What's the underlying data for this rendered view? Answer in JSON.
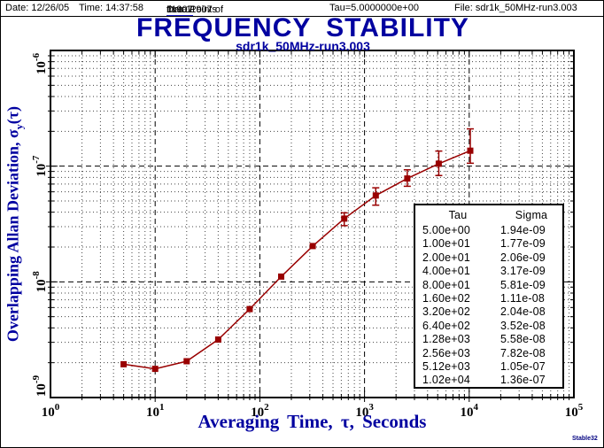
{
  "header": {
    "date_label": "Date: 12/26/05",
    "time_label": "Time: 14:37:58",
    "datapoints_prefix": "Data Points ",
    "datapoints_start": "1",
    "datapoints_mid": " thru 11907 of ",
    "datapoints_end": "11907",
    "tau_label": "Tau=5.0000000e+00",
    "file_label": "File: sdr1k_50MHz-run3.003"
  },
  "title": "FREQUENCY STABILITY",
  "subtitle": "sdr1k_50MHz-run3.003",
  "axes": {
    "x_title": "Averaging Time, τ, Seconds",
    "y_title_prefix": "Overlapping Allan Deviation, σ",
    "y_title_sub": "y",
    "y_title_suffix": "(τ)"
  },
  "watermark": "Stable32",
  "colors": {
    "accent_blue": "#0000A0",
    "header_blue": "#000080",
    "data_red": "#990000",
    "grid_major": "#000000",
    "grid_minor": "#444444"
  },
  "table": {
    "headers": [
      "Tau",
      "Sigma"
    ],
    "rows": [
      [
        "5.00e+00",
        "1.94e-09"
      ],
      [
        "1.00e+01",
        "1.77e-09"
      ],
      [
        "2.00e+01",
        "2.06e-09"
      ],
      [
        "4.00e+01",
        "3.17e-09"
      ],
      [
        "8.00e+01",
        "5.81e-09"
      ],
      [
        "1.60e+02",
        "1.11e-08"
      ],
      [
        "3.20e+02",
        "2.04e-08"
      ],
      [
        "6.40e+02",
        "3.52e-08"
      ],
      [
        "1.28e+03",
        "5.58e-08"
      ],
      [
        "2.56e+03",
        "7.82e-08"
      ],
      [
        "5.12e+03",
        "1.05e-07"
      ],
      [
        "1.02e+04",
        "1.36e-07"
      ]
    ]
  },
  "chart_data": {
    "type": "line",
    "title": "FREQUENCY STABILITY",
    "subtitle": "sdr1k_50MHz-run3.003",
    "xlabel": "Averaging Time, τ, Seconds",
    "ylabel": "Overlapping Allan Deviation, σy(τ)",
    "x_scale": "log",
    "y_scale": "log",
    "xlim": [
      1,
      100000
    ],
    "ylim": [
      1e-09,
      1e-06
    ],
    "x_tick_exponents": [
      0,
      1,
      2,
      3,
      4,
      5
    ],
    "y_tick_exponents": [
      -9,
      -8,
      -7,
      -6
    ],
    "grid": "major decades dashed, log minors dotted",
    "legend": "none",
    "series": [
      {
        "marker": "square",
        "color": "#990000",
        "tau": [
          5,
          10,
          20,
          40,
          80,
          160,
          320,
          640,
          1280,
          2560,
          5120,
          10240
        ],
        "sigma": [
          1.94e-09,
          1.77e-09,
          2.06e-09,
          3.17e-09,
          5.81e-09,
          1.11e-08,
          2.04e-08,
          3.52e-08,
          5.58e-08,
          7.82e-08,
          1.05e-07,
          1.36e-07
        ],
        "err_hi": [
          null,
          null,
          null,
          null,
          null,
          null,
          null,
          3.95e-08,
          6.5e-08,
          9.3e-08,
          1.35e-07,
          2.1e-07
        ],
        "err_lo": [
          null,
          null,
          null,
          null,
          null,
          null,
          null,
          3.06e-08,
          4.6e-08,
          6.7e-08,
          8.3e-08,
          1.06e-07
        ]
      }
    ]
  }
}
